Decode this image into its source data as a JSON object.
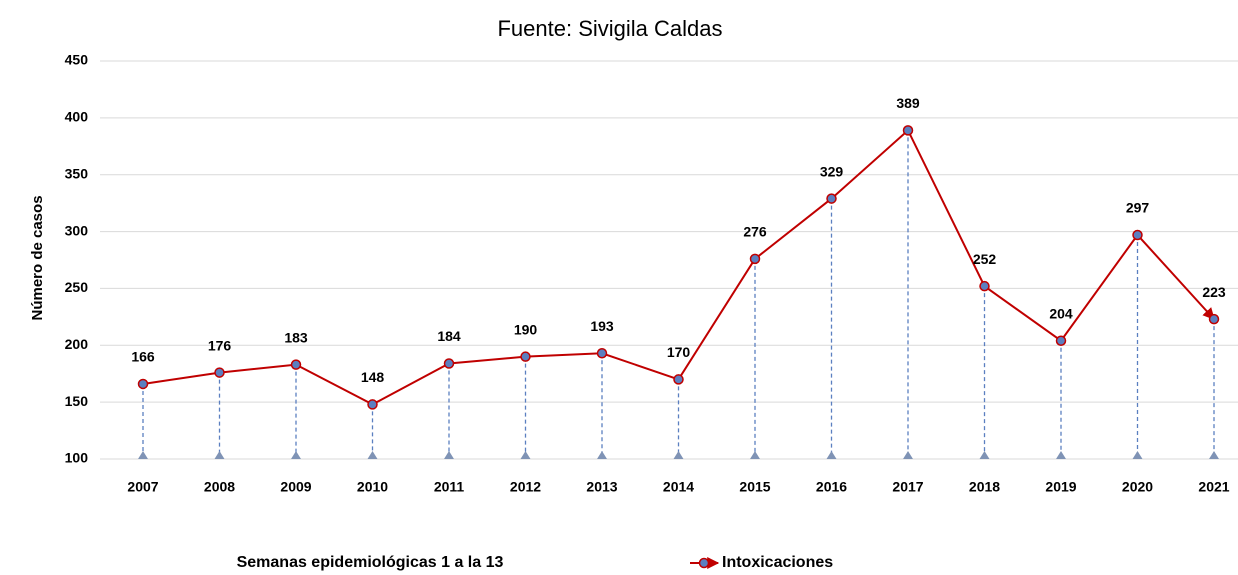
{
  "chart_data": {
    "type": "line",
    "title": "Fuente: Sivigila Caldas",
    "ylabel": "Número de casos",
    "xlabel": "Semanas epidemiológicas 1 a la 13",
    "categories": [
      "2007",
      "2008",
      "2009",
      "2010",
      "2011",
      "2012",
      "2013",
      "2014",
      "2015",
      "2016",
      "2017",
      "2018",
      "2019",
      "2020",
      "2021"
    ],
    "series": [
      {
        "name": "Intoxicaciones",
        "color": "#c00000",
        "marker_color": "#5b7fc0",
        "values": [
          166,
          176,
          183,
          148,
          184,
          190,
          193,
          170,
          276,
          329,
          389,
          252,
          204,
          297,
          223
        ]
      }
    ],
    "ylim": [
      100,
      450
    ],
    "yticks": [
      100,
      150,
      200,
      250,
      300,
      350,
      400,
      450
    ],
    "grid": true,
    "droplines": true,
    "legend": "bottom"
  }
}
